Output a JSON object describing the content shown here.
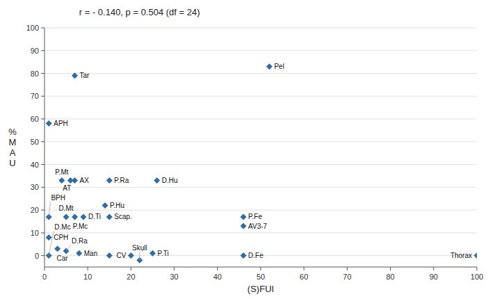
{
  "chart_data": {
    "type": "scatter",
    "annotation": "r = - 0.140, p = 0.504 (df = 24)",
    "x_label": "(S)FUI",
    "y_label": "%\nM\nA\nU",
    "x": [
      1,
      1,
      1,
      1,
      3,
      4,
      5,
      6,
      5,
      7,
      7,
      8,
      7,
      9,
      15,
      15,
      15,
      14,
      20,
      22,
      26,
      25,
      46,
      46,
      46,
      52,
      100
    ],
    "values": [
      58,
      0,
      17,
      8,
      3,
      33,
      2,
      33,
      17,
      33,
      17,
      1,
      79,
      17,
      0,
      33,
      17,
      22,
      0,
      -2,
      33,
      1,
      0,
      13,
      17,
      83,
      0
    ],
    "labels": [
      "APH",
      "D.Mc",
      "BPH",
      "CPH",
      "Car",
      "P.Mt",
      "D.Ra",
      "AT",
      "D.Mt",
      "AX",
      "P.Mc",
      "Man",
      "Tar",
      "D.Ti",
      null,
      "P.Ra",
      "Scap.",
      "P.Hu",
      "CV",
      "Skull",
      "D.Hu",
      "P.Ti",
      "D.Fe",
      "AV3-7",
      "P.Fe",
      "Pel",
      "Thorax"
    ],
    "color": "#2E6DA4",
    "marker": "diamond",
    "xlim": [
      0,
      100
    ],
    "ylim": [
      -5,
      100
    ],
    "xticks": [
      0,
      10,
      20,
      30,
      40,
      50,
      60,
      70,
      80,
      90,
      100
    ],
    "yticks": [
      0,
      10,
      20,
      30,
      40,
      50,
      60,
      70,
      80,
      90,
      100
    ],
    "grid": "y"
  }
}
